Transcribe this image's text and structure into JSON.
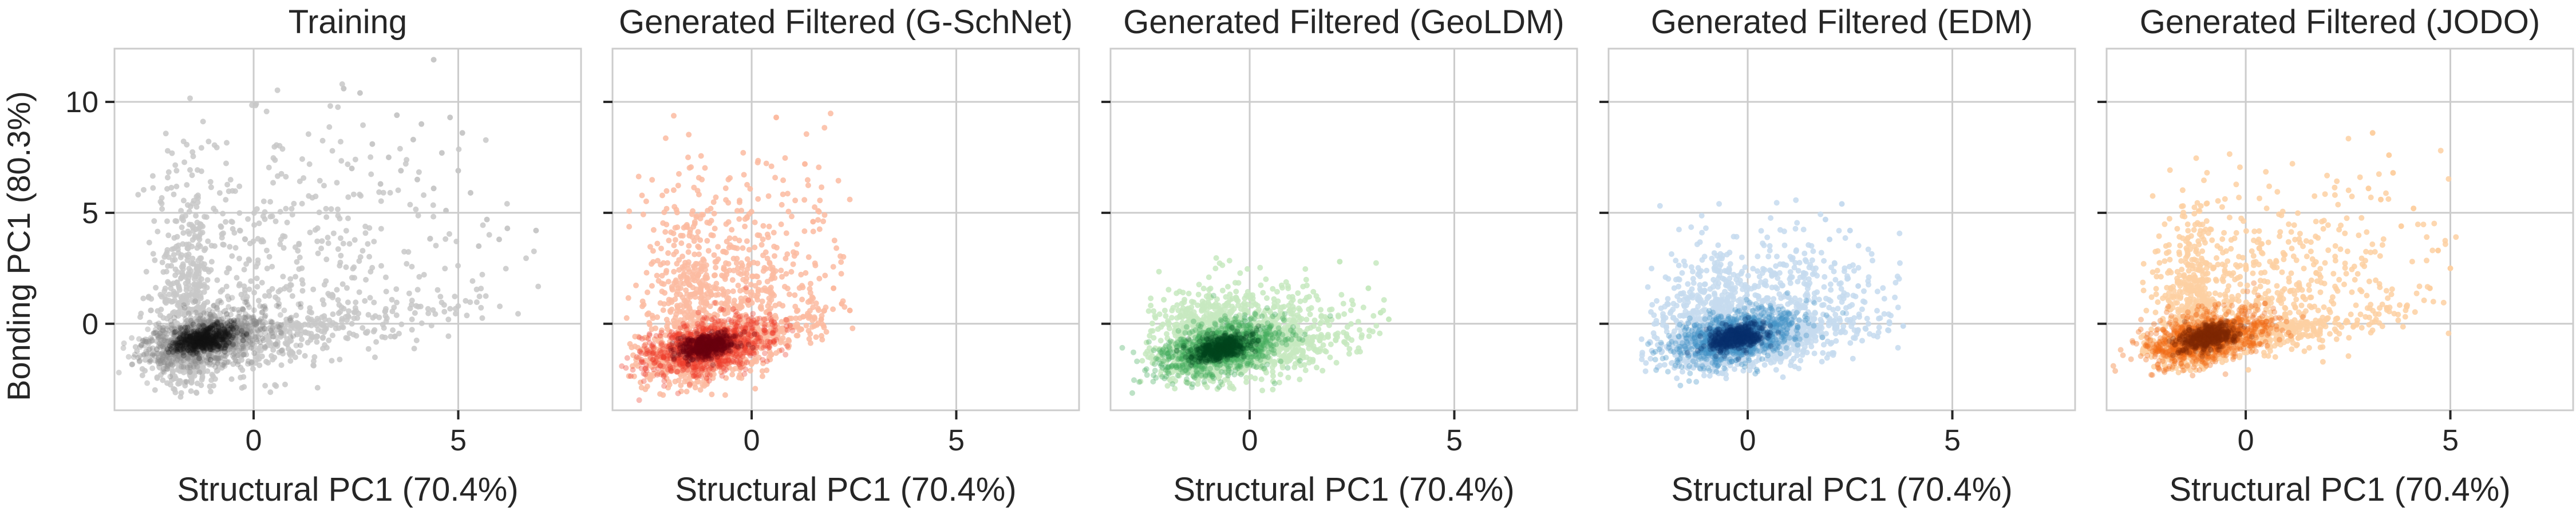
{
  "figure": {
    "shared_ylabel": "Bonding PC1 (80.3%)",
    "shared_xlabel": "Structural PC1 (70.4%)"
  },
  "chart_data": [
    {
      "type": "scatter",
      "title": "Training",
      "xlabel": "Structural PC1 (70.4%)",
      "ylabel": "Bonding PC1 (80.3%)",
      "xlim": [
        -3.4,
        8.0
      ],
      "ylim": [
        -3.9,
        12.4
      ],
      "xticks": [
        0,
        5
      ],
      "yticks": [
        0,
        5,
        10
      ],
      "grid": true,
      "colormap": "Greys",
      "colors": {
        "light": "#c8c8c8",
        "mid": "#8a8a8a",
        "dark": "#111111"
      },
      "density_center": {
        "x": -1.2,
        "y": -0.7
      },
      "x_range": [
        -2.9,
        7.0
      ],
      "y_range": [
        -3.3,
        12.0
      ],
      "outliers": [
        [
          2.2,
          10.6
        ],
        [
          2.6,
          10.4
        ],
        [
          4.4,
          11.9
        ],
        [
          3.5,
          9.4
        ],
        [
          4.1,
          9.0
        ],
        [
          4.8,
          9.3
        ],
        [
          5.1,
          8.6
        ],
        [
          2.9,
          8.1
        ],
        [
          3.3,
          7.5
        ],
        [
          3.9,
          8.3
        ],
        [
          4.6,
          7.7
        ],
        [
          5.0,
          6.9
        ],
        [
          3.1,
          6.3
        ],
        [
          4.0,
          6.5
        ],
        [
          5.3,
          5.9
        ],
        [
          4.7,
          5.1
        ],
        [
          5.7,
          4.7
        ],
        [
          6.2,
          4.3
        ],
        [
          6.9,
          4.2
        ],
        [
          6.0,
          3.8
        ],
        [
          5.5,
          3.5
        ],
        [
          2.4,
          7.0
        ],
        [
          3.6,
          6.9
        ],
        [
          4.4,
          6.1
        ]
      ]
    },
    {
      "type": "scatter",
      "title": "Generated Filtered (G-SchNet)",
      "xlabel": "Structural PC1 (70.4%)",
      "xlim": [
        -3.4,
        8.0
      ],
      "ylim": [
        -3.9,
        12.4
      ],
      "xticks": [
        0,
        5
      ],
      "yticks": [
        0,
        5,
        10
      ],
      "grid": true,
      "colormap": "Reds",
      "colors": {
        "light": "#fcbba1",
        "mid": "#ef3b2c",
        "dark": "#67000d"
      },
      "density_center": {
        "x": -1.1,
        "y": -1.0
      },
      "x_range": [
        -3.1,
        2.6
      ],
      "y_range": [
        -3.3,
        9.5
      ],
      "outliers": [
        [
          1.5,
          4.6
        ],
        [
          2.2,
          0.9
        ],
        [
          2.4,
          0.6
        ],
        [
          1.3,
          7.2
        ],
        [
          0.6,
          9.3
        ],
        [
          1.7,
          0.2
        ],
        [
          2.0,
          1.6
        ]
      ]
    },
    {
      "type": "scatter",
      "title": "Generated Filtered (GeoLDM)",
      "xlabel": "Structural PC1 (70.4%)",
      "xlim": [
        -3.4,
        8.0
      ],
      "ylim": [
        -3.9,
        12.4
      ],
      "xticks": [
        0,
        5
      ],
      "yticks": [
        0,
        5,
        10
      ],
      "grid": true,
      "colormap": "Greens",
      "colors": {
        "light": "#c7e9c0",
        "mid": "#41ab5d",
        "dark": "#00441b"
      },
      "density_center": {
        "x": -0.7,
        "y": -1.1
      },
      "x_range": [
        -2.7,
        3.4
      ],
      "y_range": [
        -3.1,
        3.0
      ],
      "outliers": [
        [
          3.2,
          0.5
        ],
        [
          2.9,
          1.6
        ],
        [
          2.2,
          2.8
        ],
        [
          3.4,
          0.2
        ]
      ]
    },
    {
      "type": "scatter",
      "title": "Generated Filtered (EDM)",
      "xlabel": "Structural PC1 (70.4%)",
      "xlim": [
        -3.4,
        8.0
      ],
      "ylim": [
        -3.9,
        12.4
      ],
      "xticks": [
        0,
        5
      ],
      "yticks": [
        0,
        5,
        10
      ],
      "grid": true,
      "colormap": "Blues",
      "colors": {
        "light": "#c6dbef",
        "mid": "#4292c6",
        "dark": "#08306b"
      },
      "density_center": {
        "x": -0.3,
        "y": -0.6
      },
      "x_range": [
        -2.6,
        3.9
      ],
      "y_range": [
        -2.6,
        5.7
      ],
      "outliers": [
        [
          3.8,
          -0.1
        ],
        [
          2.7,
          1.7
        ],
        [
          1.9,
          4.7
        ],
        [
          2.3,
          5.4
        ],
        [
          2.5,
          4.2
        ],
        [
          2.0,
          3.8
        ]
      ]
    },
    {
      "type": "scatter",
      "title": "Generated Filtered (JODO)",
      "xlabel": "Structural PC1 (70.4%)",
      "xlim": [
        -3.4,
        8.0
      ],
      "ylim": [
        -3.9,
        12.4
      ],
      "xticks": [
        0,
        5
      ],
      "yticks": [
        0,
        5,
        10
      ],
      "grid": true,
      "colormap": "Oranges",
      "colors": {
        "light": "#fdd0a2",
        "mid": "#f16913",
        "dark": "#7f2704"
      },
      "density_center": {
        "x": -0.9,
        "y": -0.6
      },
      "x_range": [
        -2.6,
        5.2
      ],
      "y_range": [
        -2.2,
        8.6
      ],
      "outliers": [
        [
          3.1,
          8.6
        ],
        [
          3.5,
          7.6
        ],
        [
          3.0,
          6.1
        ],
        [
          4.1,
          5.2
        ],
        [
          3.8,
          4.4
        ],
        [
          4.7,
          3.3
        ],
        [
          5.0,
          2.5
        ],
        [
          4.5,
          1.6
        ],
        [
          3.3,
          5.6
        ],
        [
          3.6,
          6.8
        ]
      ]
    }
  ]
}
